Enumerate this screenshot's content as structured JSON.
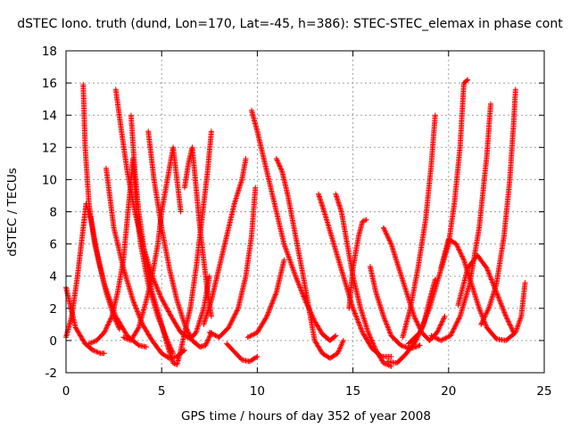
{
  "chart_data": {
    "type": "scatter",
    "title": "dSTEC Iono. truth (dund, Lon=170, Lat=-45, h=386): STEC-STEC_elemax in phase cont",
    "xlabel": "GPS time / hours of day 352 of year 2008",
    "ylabel": "dSTEC  / TECUs",
    "xlim": [
      0,
      25
    ],
    "ylim": [
      -2,
      18
    ],
    "xticks": [
      0,
      5,
      10,
      15,
      20,
      25
    ],
    "yticks": [
      -2,
      0,
      2,
      4,
      6,
      8,
      10,
      12,
      14,
      16,
      18
    ],
    "grid": true,
    "marker": "+",
    "colors": {
      "series": "#ff0000",
      "grid": "#a0a0a0",
      "axis": "#000000"
    },
    "series": [
      {
        "arcs": [
          [
            [
              0.0,
              3.3
            ],
            [
              0.2,
              2.3
            ],
            [
              0.5,
              0.8
            ],
            [
              1.0,
              -0.2
            ],
            [
              1.4,
              -0.6
            ],
            [
              1.8,
              -0.8
            ],
            [
              2.0,
              -0.8
            ]
          ],
          [
            [
              0.0,
              0.2
            ],
            [
              0.3,
              1.5
            ],
            [
              0.6,
              4.0
            ],
            [
              0.9,
              7.0
            ],
            [
              1.05,
              8.5
            ],
            [
              1.3,
              7.5
            ],
            [
              1.7,
              5.0
            ],
            [
              2.1,
              3.0
            ],
            [
              2.5,
              1.5
            ],
            [
              2.8,
              0.7
            ]
          ],
          [
            [
              0.9,
              15.9
            ],
            [
              1.0,
              12.0
            ],
            [
              1.2,
              8.5
            ],
            [
              1.5,
              6.0
            ],
            [
              2.0,
              3.5
            ],
            [
              2.6,
              1.5
            ],
            [
              3.2,
              0.3
            ],
            [
              3.8,
              -0.3
            ],
            [
              4.2,
              -0.4
            ]
          ],
          [
            [
              2.6,
              15.6
            ],
            [
              2.9,
              13.0
            ],
            [
              3.2,
              10.5
            ],
            [
              3.6,
              8.0
            ],
            [
              4.0,
              6.0
            ],
            [
              4.5,
              4.0
            ],
            [
              5.0,
              2.6
            ],
            [
              5.5,
              1.5
            ],
            [
              6.0,
              0.5
            ],
            [
              6.5,
              0.1
            ],
            [
              6.8,
              0.5
            ],
            [
              7.2,
              2.0
            ],
            [
              7.5,
              4.0
            ]
          ],
          [
            [
              2.1,
              10.7
            ],
            [
              2.5,
              7.0
            ],
            [
              3.0,
              4.5
            ],
            [
              3.5,
              2.5
            ],
            [
              4.0,
              1.0
            ],
            [
              4.5,
              0.0
            ],
            [
              5.0,
              -0.8
            ],
            [
              5.4,
              -1.1
            ],
            [
              5.8,
              -1.0
            ],
            [
              6.2,
              -0.6
            ]
          ],
          [
            [
              1.2,
              -0.2
            ],
            [
              1.6,
              0.0
            ],
            [
              2.0,
              0.5
            ],
            [
              2.4,
              1.5
            ],
            [
              2.7,
              3.0
            ],
            [
              3.0,
              5.0
            ],
            [
              3.2,
              7.5
            ],
            [
              3.4,
              10.0
            ],
            [
              3.5,
              11.3
            ],
            [
              3.7,
              8.0
            ],
            [
              3.9,
              6.0
            ],
            [
              4.3,
              3.5
            ],
            [
              4.8,
              1.5
            ],
            [
              5.3,
              0.0
            ],
            [
              5.6,
              -0.8
            ]
          ],
          [
            [
              3.4,
              14.0
            ],
            [
              3.6,
              10.5
            ],
            [
              3.8,
              8.0
            ],
            [
              4.1,
              5.5
            ],
            [
              4.5,
              3.0
            ],
            [
              5.0,
              1.0
            ],
            [
              5.3,
              -0.3
            ],
            [
              5.6,
              -1.4
            ],
            [
              5.8,
              -1.5
            ],
            [
              6.0,
              -0.6
            ],
            [
              6.2,
              0.5
            ],
            [
              6.5,
              2.0
            ],
            [
              6.8,
              4.5
            ],
            [
              7.1,
              7.5
            ],
            [
              7.4,
              10.5
            ],
            [
              7.6,
              13.0
            ]
          ],
          [
            [
              3.0,
              0.2
            ],
            [
              3.4,
              0.0
            ],
            [
              3.8,
              0.8
            ],
            [
              4.2,
              2.5
            ],
            [
              4.5,
              4.0
            ],
            [
              4.8,
              6.0
            ],
            [
              5.0,
              8.0
            ],
            [
              5.3,
              10.0
            ],
            [
              5.6,
              12.0
            ],
            [
              5.8,
              10.0
            ],
            [
              6.0,
              8.0
            ]
          ],
          [
            [
              4.3,
              13.0
            ],
            [
              4.6,
              10.0
            ],
            [
              5.0,
              7.0
            ],
            [
              5.4,
              4.5
            ],
            [
              5.8,
              2.5
            ],
            [
              6.2,
              1.0
            ],
            [
              6.6,
              0.0
            ],
            [
              7.0,
              -0.4
            ],
            [
              7.3,
              -0.3
            ],
            [
              7.6,
              0.5
            ]
          ],
          [
            [
              6.2,
              9.5
            ],
            [
              6.4,
              11.0
            ],
            [
              6.6,
              12.0
            ],
            [
              6.8,
              9.5
            ],
            [
              7.0,
              7.0
            ],
            [
              7.2,
              5.0
            ],
            [
              7.4,
              3.0
            ],
            [
              7.6,
              1.5
            ]
          ],
          [
            [
              7.2,
              1.0
            ],
            [
              7.6,
              2.5
            ],
            [
              8.0,
              4.5
            ],
            [
              8.4,
              6.5
            ],
            [
              8.8,
              8.5
            ],
            [
              9.2,
              10.0
            ],
            [
              9.4,
              11.3
            ]
          ],
          [
            [
              7.5,
              0.5
            ],
            [
              8.0,
              0.2
            ],
            [
              8.5,
              0.8
            ],
            [
              9.0,
              2.0
            ],
            [
              9.4,
              4.0
            ],
            [
              9.7,
              6.5
            ],
            [
              9.9,
              9.5
            ]
          ],
          [
            [
              8.4,
              -0.2
            ],
            [
              8.8,
              -0.7
            ],
            [
              9.2,
              -1.2
            ],
            [
              9.6,
              -1.3
            ],
            [
              10.0,
              -1.0
            ]
          ],
          [
            [
              9.7,
              14.3
            ],
            [
              10.0,
              13.0
            ],
            [
              10.4,
              11.0
            ],
            [
              10.9,
              8.5
            ],
            [
              11.4,
              6.0
            ],
            [
              12.0,
              4.0
            ],
            [
              12.5,
              2.5
            ],
            [
              13.0,
              1.2
            ],
            [
              13.4,
              0.4
            ],
            [
              13.8,
              0.0
            ],
            [
              14.1,
              0.3
            ]
          ],
          [
            [
              11.0,
              11.3
            ],
            [
              11.3,
              10.5
            ],
            [
              11.6,
              9.0
            ],
            [
              12.0,
              6.5
            ],
            [
              12.4,
              4.0
            ],
            [
              12.7,
              2.0
            ],
            [
              13.0,
              0.0
            ],
            [
              13.4,
              -0.8
            ],
            [
              13.8,
              -1.1
            ],
            [
              14.2,
              -0.8
            ],
            [
              14.5,
              0.0
            ]
          ],
          [
            [
              9.5,
              0.2
            ],
            [
              10.0,
              0.5
            ],
            [
              10.5,
              1.5
            ],
            [
              11.0,
              3.0
            ],
            [
              11.3,
              4.5
            ],
            [
              11.4,
              5.0
            ]
          ],
          [
            [
              13.2,
              9.1
            ],
            [
              13.5,
              8.0
            ],
            [
              14.0,
              6.0
            ],
            [
              14.5,
              4.0
            ],
            [
              15.0,
              2.0
            ],
            [
              15.5,
              0.5
            ],
            [
              16.0,
              -0.5
            ],
            [
              16.5,
              -1.0
            ],
            [
              17.0,
              -1.0
            ]
          ],
          [
            [
              14.1,
              9.1
            ],
            [
              14.4,
              8.0
            ],
            [
              14.7,
              6.0
            ],
            [
              15.0,
              4.0
            ],
            [
              15.4,
              2.0
            ],
            [
              15.8,
              0.5
            ],
            [
              16.2,
              -0.6
            ],
            [
              16.6,
              -1.4
            ],
            [
              17.0,
              -1.6
            ]
          ],
          [
            [
              14.8,
              2.0
            ],
            [
              15.0,
              4.5
            ],
            [
              15.3,
              6.5
            ],
            [
              15.5,
              7.4
            ],
            [
              15.7,
              7.5
            ]
          ],
          [
            [
              15.9,
              4.6
            ],
            [
              16.2,
              3.0
            ],
            [
              16.6,
              1.5
            ],
            [
              17.0,
              0.3
            ],
            [
              17.5,
              -0.3
            ],
            [
              18.0,
              -0.5
            ],
            [
              18.5,
              -0.3
            ]
          ],
          [
            [
              16.6,
              7.0
            ],
            [
              17.0,
              6.0
            ],
            [
              17.4,
              4.5
            ],
            [
              17.8,
              3.0
            ],
            [
              18.2,
              1.5
            ],
            [
              18.6,
              0.5
            ],
            [
              19.0,
              0.0
            ],
            [
              19.4,
              0.5
            ],
            [
              19.8,
              1.5
            ]
          ],
          [
            [
              16.8,
              -1.3
            ],
            [
              17.3,
              -1.4
            ],
            [
              17.8,
              -0.8
            ],
            [
              18.3,
              0.0
            ],
            [
              18.7,
              1.0
            ],
            [
              19.0,
              2.5
            ],
            [
              19.3,
              3.8
            ]
          ],
          [
            [
              17.6,
              0.2
            ],
            [
              18.0,
              2.0
            ],
            [
              18.4,
              4.5
            ],
            [
              18.8,
              7.5
            ],
            [
              19.1,
              11.0
            ],
            [
              19.3,
              14.0
            ]
          ],
          [
            [
              17.9,
              -0.2
            ],
            [
              18.5,
              0.5
            ],
            [
              19.0,
              2.0
            ],
            [
              19.5,
              4.0
            ],
            [
              20.0,
              6.0
            ],
            [
              20.3,
              8.5
            ],
            [
              20.6,
              12.0
            ],
            [
              20.8,
              16.0
            ],
            [
              21.0,
              16.2
            ]
          ],
          [
            [
              19.6,
              4.5
            ],
            [
              20.0,
              6.3
            ],
            [
              20.4,
              6.0
            ],
            [
              20.8,
              5.0
            ],
            [
              21.2,
              3.5
            ],
            [
              21.6,
              2.0
            ],
            [
              22.0,
              0.8
            ],
            [
              22.5,
              0.1
            ],
            [
              23.0,
              0.0
            ],
            [
              23.5,
              0.5
            ],
            [
              23.8,
              1.5
            ],
            [
              24.0,
              3.6
            ]
          ],
          [
            [
              19.1,
              0.3
            ],
            [
              19.6,
              0.0
            ],
            [
              20.1,
              0.3
            ],
            [
              20.6,
              1.5
            ],
            [
              21.1,
              3.5
            ],
            [
              21.6,
              7.0
            ],
            [
              22.0,
              11.5
            ],
            [
              22.2,
              14.7
            ]
          ],
          [
            [
              20.5,
              2.2
            ],
            [
              21.0,
              4.5
            ],
            [
              21.5,
              5.3
            ],
            [
              22.0,
              4.5
            ],
            [
              22.5,
              3.0
            ],
            [
              23.0,
              1.5
            ],
            [
              23.4,
              0.5
            ]
          ],
          [
            [
              21.7,
              1.0
            ],
            [
              22.1,
              2.0
            ],
            [
              22.5,
              3.5
            ],
            [
              22.9,
              6.5
            ],
            [
              23.2,
              10.0
            ],
            [
              23.4,
              13.5
            ],
            [
              23.5,
              15.6
            ]
          ]
        ]
      }
    ]
  }
}
